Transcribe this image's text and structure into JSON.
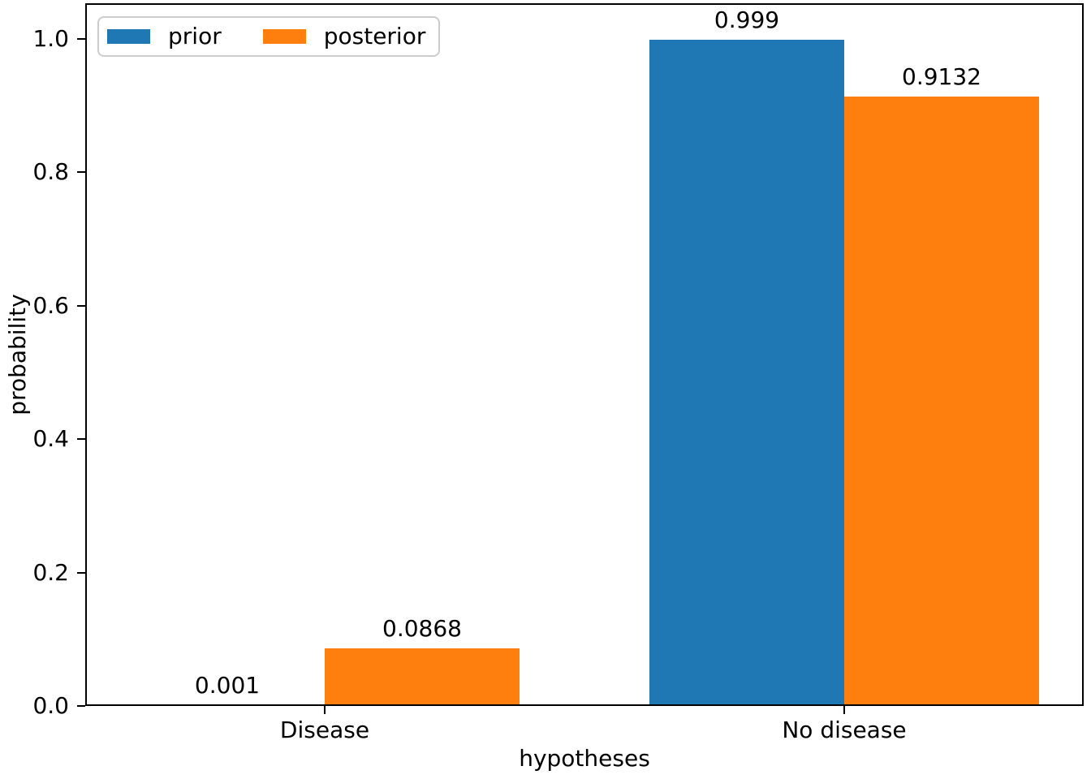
{
  "chart_data": {
    "type": "bar",
    "title": "",
    "xlabel": "hypotheses",
    "ylabel": "probability",
    "categories": [
      "Disease",
      "No disease"
    ],
    "series": [
      {
        "name": "prior",
        "color": "#1f77b4",
        "values": [
          0.001,
          0.999
        ],
        "value_labels": [
          "0.001",
          "0.999"
        ]
      },
      {
        "name": "posterior",
        "color": "#ff7f0e",
        "values": [
          0.0868,
          0.9132
        ],
        "value_labels": [
          "0.0868",
          "0.9132"
        ]
      }
    ],
    "ylim": [
      0,
      1.05
    ],
    "yticks": [
      0.0,
      0.2,
      0.4,
      0.6,
      0.8,
      1.0
    ],
    "ytick_labels": [
      "0.0",
      "0.2",
      "0.4",
      "0.6",
      "0.8",
      "1.0"
    ],
    "legend": {
      "position": "upper left",
      "entries": [
        "prior",
        "posterior"
      ]
    },
    "grid": false,
    "colors": {
      "axes": "#000000",
      "legend_border": "#cccccc",
      "background": "#ffffff"
    }
  }
}
